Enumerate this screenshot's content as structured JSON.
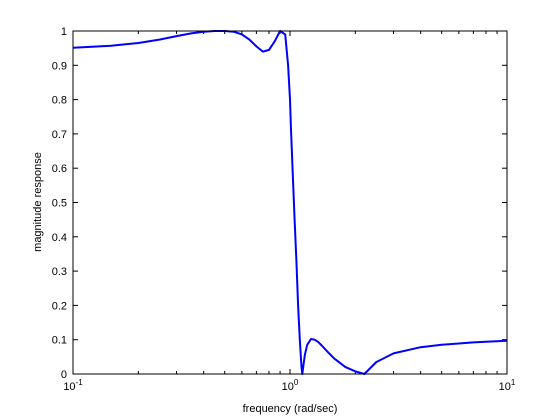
{
  "chart_data": {
    "type": "line",
    "title": "",
    "xlabel": "frequency (rad/sec)",
    "ylabel": "magnitude response",
    "xscale": "log",
    "xlim": [
      0.1,
      10
    ],
    "ylim": [
      0,
      1
    ],
    "grid": false,
    "legend": "none",
    "x_tick_labels": [
      {
        "value": 0.1,
        "base": "10",
        "exp": "-1"
      },
      {
        "value": 1,
        "base": "10",
        "exp": "0"
      },
      {
        "value": 10,
        "base": "10",
        "exp": "1"
      }
    ],
    "y_ticks": [
      0,
      0.1,
      0.2,
      0.3,
      0.4,
      0.5,
      0.6,
      0.7,
      0.8,
      0.9,
      1
    ],
    "y_tick_labels": [
      "0",
      "0.1",
      "0.2",
      "0.3",
      "0.4",
      "0.5",
      "0.6",
      "0.7",
      "0.8",
      "0.9",
      "1"
    ],
    "colors": {
      "series": "#0000ff",
      "axes": "#000000",
      "background": "#ffffff"
    },
    "series": [
      {
        "color": "#0000ff",
        "x": [
          0.1,
          0.15,
          0.2,
          0.25,
          0.3,
          0.35,
          0.4,
          0.45,
          0.5,
          0.55,
          0.6,
          0.65,
          0.7,
          0.75,
          0.8,
          0.85,
          0.9,
          0.95,
          0.98,
          1.0,
          1.01,
          1.03,
          1.05,
          1.07,
          1.09,
          1.11,
          1.13,
          1.14,
          1.15,
          1.17,
          1.2,
          1.25,
          1.3,
          1.35,
          1.4,
          1.5,
          1.6,
          1.8,
          2.0,
          2.2,
          2.3,
          2.5,
          3.0,
          4.0,
          5.0,
          6.0,
          7.0,
          8.0,
          10.0
        ],
        "y": [
          0.951,
          0.957,
          0.965,
          0.975,
          0.985,
          0.993,
          0.998,
          1.0,
          1.0,
          0.998,
          0.99,
          0.975,
          0.955,
          0.94,
          0.945,
          0.97,
          1.0,
          0.99,
          0.9,
          0.8,
          0.72,
          0.58,
          0.45,
          0.33,
          0.2,
          0.1,
          0.02,
          0.0,
          0.02,
          0.055,
          0.085,
          0.102,
          0.1,
          0.093,
          0.083,
          0.063,
          0.045,
          0.02,
          0.008,
          0.0,
          0.012,
          0.035,
          0.06,
          0.078,
          0.085,
          0.089,
          0.092,
          0.094,
          0.097
        ]
      }
    ]
  }
}
